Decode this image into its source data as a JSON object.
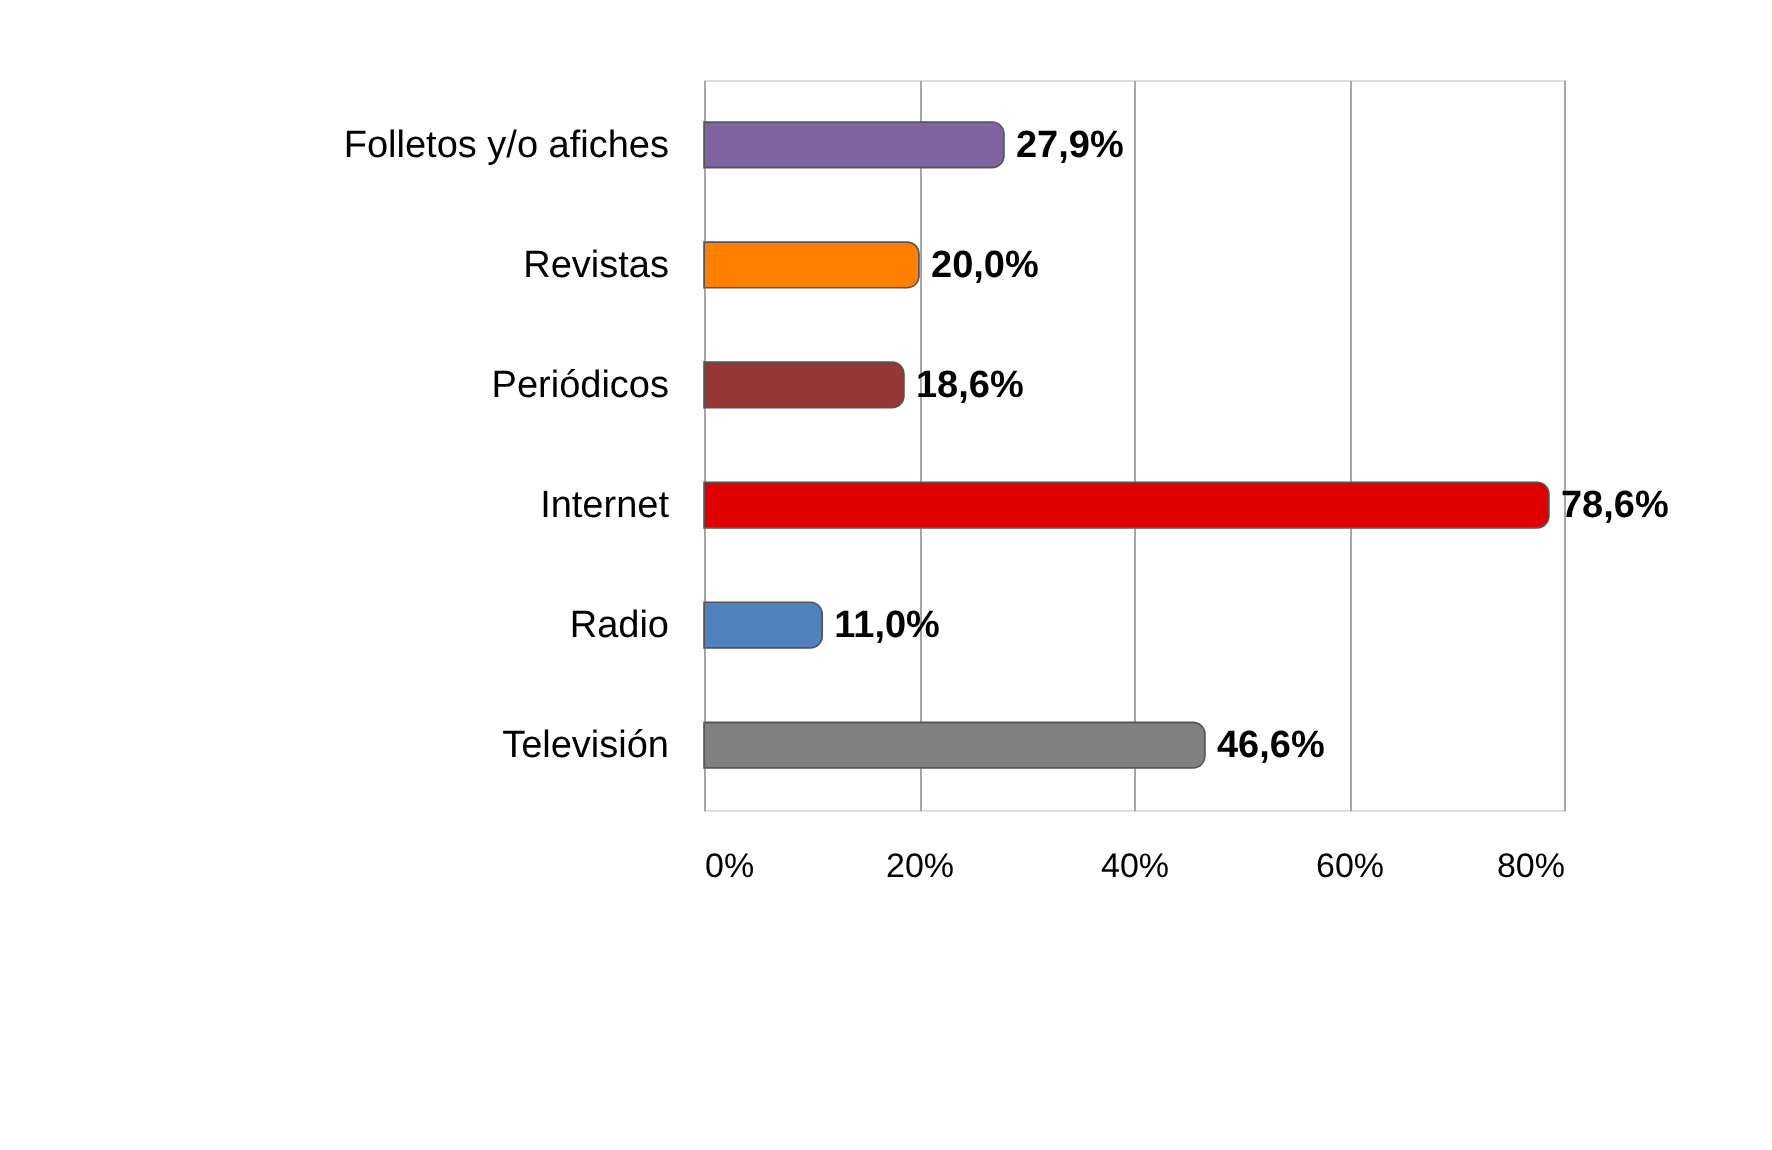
{
  "chart_data": {
    "type": "bar",
    "orientation": "horizontal",
    "categories": [
      "Folletos y/o afiches",
      "Revistas",
      "Periódicos",
      "Internet",
      "Radio",
      "Televisión"
    ],
    "values": [
      27.9,
      20.0,
      18.6,
      78.6,
      11.0,
      46.6
    ],
    "colors": [
      "#8064a2",
      "#ff8000",
      "#953735",
      "#e00000",
      "#4f81bd",
      "#808080"
    ],
    "value_labels": [
      "27,9%",
      "20,0%",
      "18,6%",
      "78,6%",
      "11,0%",
      "46,6%"
    ],
    "xlim": [
      0,
      80
    ],
    "xticks": [
      {
        "value": 0,
        "label": "0%"
      },
      {
        "value": 20,
        "label": "20%"
      },
      {
        "value": 40,
        "label": "40%"
      },
      {
        "value": 60,
        "label": "60%"
      },
      {
        "value": 80,
        "label": "80%"
      }
    ],
    "grid": "x",
    "legend": false
  }
}
